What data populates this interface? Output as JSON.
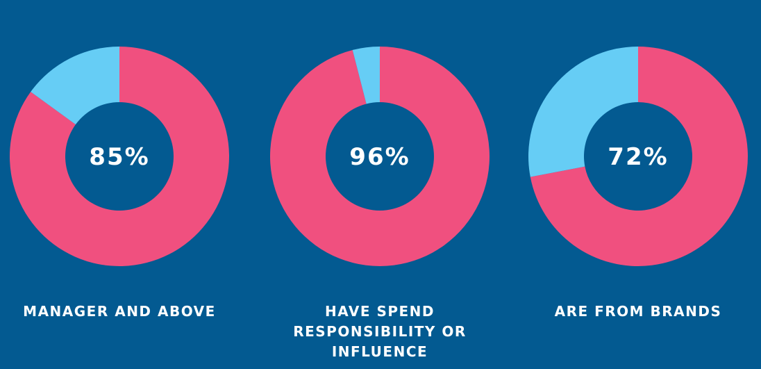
{
  "chart_data": [
    {
      "type": "pie",
      "variant": "donut",
      "value": 85,
      "remainder": 15,
      "center_label": "85%",
      "caption": "MANAGER AND ABOVE"
    },
    {
      "type": "pie",
      "variant": "donut",
      "value": 96,
      "remainder": 4,
      "center_label": "96%",
      "caption": "HAVE SPEND RESPONSIBILITY OR INFLUENCE"
    },
    {
      "type": "pie",
      "variant": "donut",
      "value": 72,
      "remainder": 28,
      "center_label": "72%",
      "caption": "ARE FROM BRANDS"
    }
  ],
  "colors": {
    "background": "#035a91",
    "value": "#f0507f",
    "remainder": "#66cdf5",
    "text": "#ffffff"
  }
}
